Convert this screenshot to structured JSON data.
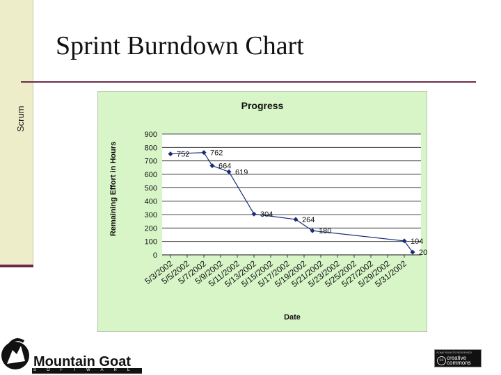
{
  "slide": {
    "sidebar_label": "Scrum",
    "title": "Sprint Burndown Chart"
  },
  "logo": {
    "name": "Mountain Goat",
    "subtitle": "SOFTWARE"
  },
  "license_badge": {
    "top_text": "SOME RIGHTS RESERVED",
    "line1": "creative",
    "line2": "commons",
    "symbol": "cc"
  },
  "colors": {
    "plot_background": "#d8f5c8",
    "grid_area": "#ffffff",
    "series": "#1a2a7a",
    "accent": "#6b2a4a"
  },
  "chart_data": {
    "type": "line",
    "title": "Progress",
    "xlabel": "Date",
    "ylabel": "Remaining Effort in Hours",
    "ylim": [
      0,
      900
    ],
    "yticks": [
      0,
      100,
      200,
      300,
      400,
      500,
      600,
      700,
      800,
      900
    ],
    "categories": [
      "5/3/2002",
      "5/5/2002",
      "5/7/2002",
      "5/9/2002",
      "5/11/2002",
      "5/13/2002",
      "5/15/2002",
      "5/17/2002",
      "5/19/2002",
      "5/21/2002",
      "5/23/2002",
      "5/25/2002",
      "5/27/2002",
      "5/29/2002",
      "5/31/2002"
    ],
    "grid": true,
    "series": [
      {
        "points": [
          {
            "x": "5/3/2002",
            "y": 752
          },
          {
            "x": "5/7/2002",
            "y": 762
          },
          {
            "x": "5/8/2002",
            "y": 664
          },
          {
            "x": "5/10/2002",
            "y": 619
          },
          {
            "x": "5/13/2002",
            "y": 304
          },
          {
            "x": "5/18/2002",
            "y": 264
          },
          {
            "x": "5/20/2002",
            "y": 180
          },
          {
            "x": "5/31/2002",
            "y": 104
          },
          {
            "x": "6/1/2002",
            "y": 20
          }
        ]
      }
    ]
  }
}
